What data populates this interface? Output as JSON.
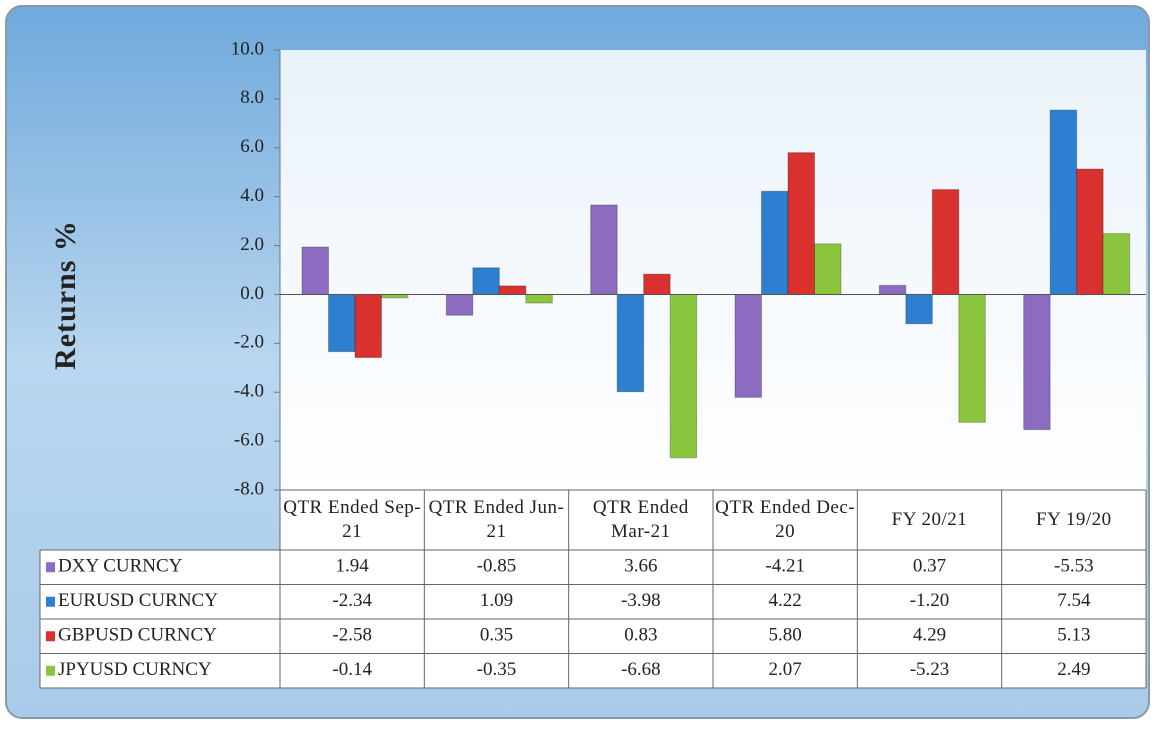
{
  "chart_data": {
    "type": "bar",
    "y_label": "Returns %",
    "categories": [
      "QTR Ended Sep-21",
      "QTR Ended Jun-21",
      "QTR Ended Mar-21",
      "QTR Ended Dec-20",
      "FY 20/21",
      "FY 19/20"
    ],
    "series": [
      {
        "name": "DXY CURNCY",
        "color": "#8b6cc0",
        "values": [
          1.94,
          -0.85,
          3.66,
          -4.21,
          0.37,
          -5.53
        ],
        "value_labels": [
          "1.94",
          "-0.85",
          "3.66",
          "-4.21",
          "0.37",
          "-5.53"
        ]
      },
      {
        "name": "EURUSD CURNCY",
        "color": "#2e7fd0",
        "values": [
          -2.34,
          1.09,
          -3.98,
          4.22,
          -1.2,
          7.54
        ],
        "value_labels": [
          "-2.34",
          "1.09",
          "-3.98",
          "4.22",
          "-1.20",
          "7.54"
        ]
      },
      {
        "name": "GBPUSD CURNCY",
        "color": "#d8312e",
        "values": [
          -2.58,
          0.35,
          0.83,
          5.8,
          4.29,
          5.13
        ],
        "value_labels": [
          "-2.58",
          "0.35",
          "0.83",
          "5.80",
          "4.29",
          "5.13"
        ]
      },
      {
        "name": "JPYUSD CURNCY",
        "color": "#8cc63e",
        "values": [
          -0.14,
          -0.35,
          -6.68,
          2.07,
          -5.23,
          2.49
        ],
        "value_labels": [
          "-0.14",
          "-0.35",
          "-6.68",
          "2.07",
          "-5.23",
          "2.49"
        ]
      }
    ],
    "ylim": [
      -8,
      10
    ],
    "yticks": [
      {
        "value": -8,
        "label": "-8.0"
      },
      {
        "value": -6,
        "label": "-6.0"
      },
      {
        "value": -4,
        "label": "-4.0"
      },
      {
        "value": -2,
        "label": "-2.0"
      },
      {
        "value": 0,
        "label": "0.0"
      },
      {
        "value": 2,
        "label": "2.0"
      },
      {
        "value": 4,
        "label": "4.0"
      },
      {
        "value": 6,
        "label": "6.0"
      },
      {
        "value": 8,
        "label": "8.0"
      },
      {
        "value": 10,
        "label": "10.0"
      }
    ],
    "grid": false
  }
}
